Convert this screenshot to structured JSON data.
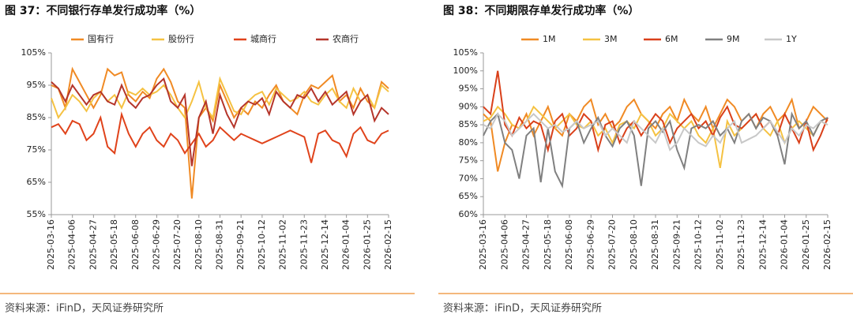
{
  "chart_data": [
    {
      "type": "line",
      "title": "图 37：不同银行存单发行成功率（%）",
      "source": "资料来源：iFinD，天风证券研究所",
      "categories": [
        "2025-03-16",
        null,
        null,
        "2025-04-06",
        null,
        null,
        "2025-04-27",
        null,
        null,
        "2025-05-18",
        null,
        null,
        "2025-06-08",
        null,
        null,
        "2025-06-29",
        null,
        null,
        "2025-07-20",
        null,
        null,
        "2025-08-10",
        null,
        null,
        "2025-08-31",
        null,
        null,
        "2025-09-21",
        null,
        null,
        "2025-10-12",
        null,
        null,
        "2025-11-02",
        null,
        null,
        "2025-11-23",
        null,
        null,
        "2025-12-14",
        null,
        null,
        "2026-01-04",
        null,
        null,
        "2026-01-25",
        null,
        null,
        "2026-02-15"
      ],
      "ylim": [
        55,
        105
      ],
      "yticks": [
        {
          "value": 55,
          "label": "55%"
        },
        {
          "value": 65,
          "label": "65%"
        },
        {
          "value": 75,
          "label": "75%"
        },
        {
          "value": 85,
          "label": "85%"
        },
        {
          "value": 95,
          "label": "95%"
        },
        {
          "value": 105,
          "label": "105%"
        }
      ],
      "series": [
        {
          "name": "国有行",
          "color": "#F08A24",
          "values": [
            95,
            94,
            88,
            100,
            96,
            92,
            88,
            92,
            100,
            98,
            99,
            92,
            90,
            93,
            91,
            97,
            100,
            96,
            90,
            88,
            60,
            85,
            88,
            84,
            95,
            90,
            85,
            88,
            86,
            90,
            88,
            92,
            95,
            90,
            88,
            86,
            92,
            95,
            94,
            96,
            98,
            90,
            92,
            88,
            94,
            90,
            88,
            96,
            94
          ]
        },
        {
          "name": "股份行",
          "color": "#F5C242",
          "values": [
            91,
            85,
            88,
            92,
            90,
            87,
            91,
            93,
            90,
            92,
            88,
            93,
            92,
            94,
            92,
            93,
            95,
            92,
            88,
            85,
            90,
            96,
            88,
            85,
            97,
            92,
            87,
            86,
            90,
            92,
            93,
            89,
            94,
            92,
            90,
            91,
            93,
            90,
            89,
            92,
            94,
            90,
            88,
            94,
            90,
            92,
            88,
            95,
            93
          ]
        },
        {
          "name": "城商行",
          "color": "#E0431B",
          "values": [
            82,
            83,
            80,
            84,
            83,
            78,
            80,
            85,
            76,
            74,
            86,
            80,
            76,
            80,
            82,
            78,
            76,
            80,
            78,
            74,
            77,
            80,
            76,
            78,
            82,
            80,
            78,
            80,
            79,
            78,
            77,
            78,
            79,
            80,
            81,
            80,
            79,
            71,
            80,
            81,
            78,
            77,
            73,
            80,
            82,
            78,
            77,
            80,
            81
          ]
        },
        {
          "name": "农商行",
          "color": "#B5352A",
          "values": [
            96,
            94,
            90,
            95,
            92,
            89,
            92,
            93,
            90,
            89,
            95,
            90,
            88,
            91,
            92,
            95,
            97,
            90,
            88,
            92,
            70,
            85,
            90,
            80,
            92,
            86,
            82,
            88,
            90,
            89,
            91,
            86,
            93,
            90,
            88,
            92,
            91,
            94,
            90,
            93,
            89,
            91,
            93,
            86,
            90,
            92,
            84,
            88,
            86
          ]
        }
      ]
    },
    {
      "type": "line",
      "title": "图 38：不同期限存单发行成功率（%）",
      "source": "资料来源：iFinD，天风证券研究所",
      "categories": [
        "2025-03-16",
        null,
        null,
        "2025-04-06",
        null,
        null,
        "2025-04-27",
        null,
        null,
        "2025-05-18",
        null,
        null,
        "2025-06-08",
        null,
        null,
        "2025-06-29",
        null,
        null,
        "2025-07-20",
        null,
        null,
        "2025-08-10",
        null,
        null,
        "2025-08-31",
        null,
        null,
        "2025-09-21",
        null,
        null,
        "2025-10-12",
        null,
        null,
        "2025-11-02",
        null,
        null,
        "2025-11-23",
        null,
        null,
        "2025-12-14",
        null,
        null,
        "2026-01-04",
        null,
        null,
        "2026-01-25",
        null,
        null,
        "2026-02-15"
      ],
      "ylim": [
        60,
        105
      ],
      "yticks": [
        {
          "value": 60,
          "label": "60%"
        },
        {
          "value": 65,
          "label": "65%"
        },
        {
          "value": 70,
          "label": "70%"
        },
        {
          "value": 75,
          "label": "75%"
        },
        {
          "value": 80,
          "label": "80%"
        },
        {
          "value": 85,
          "label": "85%"
        },
        {
          "value": 90,
          "label": "90%"
        },
        {
          "value": 95,
          "label": "95%"
        },
        {
          "value": 100,
          "label": "100%"
        },
        {
          "value": 105,
          "label": "105%"
        }
      ],
      "series": [
        {
          "name": "1M",
          "color": "#F08A24",
          "values": [
            88,
            86,
            72,
            80,
            85,
            84,
            88,
            82,
            86,
            90,
            84,
            82,
            88,
            86,
            90,
            92,
            85,
            88,
            84,
            86,
            90,
            92,
            88,
            86,
            84,
            88,
            90,
            86,
            92,
            88,
            86,
            90,
            84,
            88,
            92,
            90,
            86,
            88,
            84,
            88,
            90,
            86,
            88,
            92,
            84,
            86,
            90,
            88,
            86
          ]
        },
        {
          "name": "3M",
          "color": "#F5C242",
          "values": [
            86,
            87,
            90,
            88,
            85,
            84,
            86,
            90,
            88,
            86,
            84,
            86,
            88,
            85,
            84,
            86,
            82,
            84,
            80,
            85,
            86,
            84,
            88,
            86,
            82,
            84,
            88,
            86,
            84,
            86,
            82,
            80,
            84,
            73,
            86,
            82,
            84,
            86,
            88,
            84,
            82,
            86,
            80,
            84,
            86,
            84,
            82,
            86,
            85
          ]
        },
        {
          "name": "6M",
          "color": "#D9401A",
          "values": [
            90,
            88,
            100,
            85,
            82,
            87,
            84,
            86,
            85,
            78,
            86,
            88,
            82,
            84,
            88,
            86,
            78,
            85,
            86,
            80,
            84,
            86,
            82,
            85,
            88,
            86,
            80,
            84,
            86,
            88,
            84,
            86,
            82,
            87,
            90,
            85,
            84,
            86,
            88,
            84,
            86,
            82,
            88,
            84,
            80,
            86,
            78,
            82,
            87
          ]
        },
        {
          "name": "9M",
          "color": "#808080",
          "values": [
            82,
            86,
            88,
            80,
            78,
            70,
            82,
            84,
            69,
            84,
            72,
            68,
            84,
            86,
            80,
            84,
            87,
            82,
            79,
            84,
            86,
            82,
            68,
            84,
            86,
            83,
            86,
            78,
            73,
            84,
            85,
            84,
            86,
            82,
            84,
            80,
            86,
            88,
            84,
            87,
            86,
            82,
            74,
            88,
            84,
            86,
            82,
            86,
            87
          ]
        },
        {
          "name": "1Y",
          "color": "#C8C8C8",
          "values": [
            85,
            84,
            88,
            86,
            82,
            84,
            86,
            88,
            86,
            84,
            85,
            83,
            84,
            86,
            84,
            85,
            86,
            82,
            84,
            82,
            80,
            86,
            84,
            82,
            80,
            84,
            78,
            80,
            84,
            82,
            80,
            79,
            82,
            80,
            84,
            86,
            80,
            81,
            82,
            84,
            86,
            83,
            80,
            84,
            82,
            85,
            84,
            86,
            85
          ]
        }
      ]
    }
  ]
}
